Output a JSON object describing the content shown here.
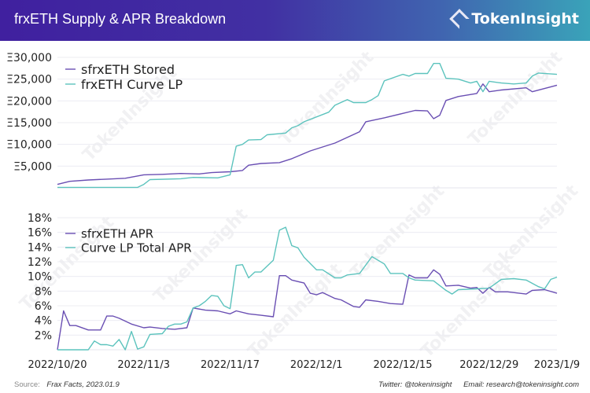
{
  "header": {
    "title": "frxETH Supply & APR Breakdown",
    "brand": "TokenInsight"
  },
  "watermark": "TokenInsight",
  "footer": {
    "source_label": "Source:",
    "source": "Frax Facts, 2023.01.9",
    "twitter": "Twitter: @tokeninsight",
    "email": "Email: research@tokeninsight.com"
  },
  "colors": {
    "purple": "#6a4fb3",
    "teal": "#5cc3bd",
    "grid": "#ececf2",
    "header_start": "#40209f",
    "header_end": "#3aa3b9"
  },
  "chart_data": [
    {
      "type": "line",
      "title": "",
      "legend": "top-left",
      "grid": true,
      "ylim": [
        0,
        30000
      ],
      "yticks": [
        "Ξ5,000",
        "Ξ10,000",
        "Ξ15,000",
        "Ξ20,000",
        "Ξ25,000",
        "Ξ30,000"
      ],
      "ytick_values": [
        5000,
        10000,
        15000,
        20000,
        25000,
        30000
      ],
      "xlim": [
        "2022-10-20",
        "2023-01-09"
      ],
      "series": [
        {
          "name": "sfrxETH Stored",
          "color": "#6a4fb3",
          "points": [
            [
              "2022-10-20",
              800
            ],
            [
              "2022-10-22",
              1500
            ],
            [
              "2022-10-25",
              1800
            ],
            [
              "2022-10-28",
              2000
            ],
            [
              "2022-10-31",
              2200
            ],
            [
              "2022-11-03",
              3000
            ],
            [
              "2022-11-06",
              3100
            ],
            [
              "2022-11-09",
              3300
            ],
            [
              "2022-11-12",
              3200
            ],
            [
              "2022-11-14",
              3500
            ],
            [
              "2022-11-17",
              3700
            ],
            [
              "2022-11-19",
              4000
            ],
            [
              "2022-11-20",
              5200
            ],
            [
              "2022-11-22",
              5600
            ],
            [
              "2022-11-25",
              5800
            ],
            [
              "2022-11-27",
              6700
            ],
            [
              "2022-11-30",
              8500
            ],
            [
              "2022-12-04",
              10300
            ],
            [
              "2022-12-08",
              12900
            ],
            [
              "2022-12-09",
              15200
            ],
            [
              "2022-12-12",
              16100
            ],
            [
              "2022-12-17",
              17800
            ],
            [
              "2022-12-19",
              17700
            ],
            [
              "2022-12-20",
              15900
            ],
            [
              "2022-12-21",
              16700
            ],
            [
              "2022-12-22",
              20100
            ],
            [
              "2022-12-24",
              21000
            ],
            [
              "2022-12-27",
              21700
            ],
            [
              "2022-12-28",
              23900
            ],
            [
              "2022-12-29",
              22100
            ],
            [
              "2022-12-31",
              22500
            ],
            [
              "2023-01-04",
              23000
            ],
            [
              "2023-01-05",
              22100
            ],
            [
              "2023-01-09",
              23600
            ]
          ]
        },
        {
          "name": "frxETH Curve LP",
          "color": "#5cc3bd",
          "points": [
            [
              "2022-10-20",
              100
            ],
            [
              "2022-11-02",
              100
            ],
            [
              "2022-11-03",
              800
            ],
            [
              "2022-11-04",
              1900
            ],
            [
              "2022-11-09",
              2100
            ],
            [
              "2022-11-11",
              2400
            ],
            [
              "2022-11-15",
              2300
            ],
            [
              "2022-11-17",
              3000
            ],
            [
              "2022-11-18",
              9600
            ],
            [
              "2022-11-19",
              10000
            ],
            [
              "2022-11-20",
              11000
            ],
            [
              "2022-11-22",
              11100
            ],
            [
              "2022-11-23",
              12200
            ],
            [
              "2022-11-26",
              12600
            ],
            [
              "2022-11-27",
              13800
            ],
            [
              "2022-11-28",
              14300
            ],
            [
              "2022-11-29",
              15200
            ],
            [
              "2022-12-03",
              17400
            ],
            [
              "2022-12-04",
              19000
            ],
            [
              "2022-12-06",
              20300
            ],
            [
              "2022-12-07",
              19600
            ],
            [
              "2022-12-09",
              19600
            ],
            [
              "2022-12-10",
              20300
            ],
            [
              "2022-12-11",
              21200
            ],
            [
              "2022-12-12",
              24600
            ],
            [
              "2022-12-15",
              26100
            ],
            [
              "2022-12-16",
              25700
            ],
            [
              "2022-12-17",
              26300
            ],
            [
              "2022-12-19",
              26300
            ],
            [
              "2022-12-20",
              28600
            ],
            [
              "2022-12-21",
              28600
            ],
            [
              "2022-12-22",
              25200
            ],
            [
              "2022-12-24",
              25000
            ],
            [
              "2022-12-26",
              24100
            ],
            [
              "2022-12-27",
              24500
            ],
            [
              "2022-12-28",
              22100
            ],
            [
              "2022-12-29",
              24500
            ],
            [
              "2022-12-31",
              24100
            ],
            [
              "2023-01-02",
              23900
            ],
            [
              "2023-01-04",
              24100
            ],
            [
              "2023-01-05",
              25700
            ],
            [
              "2023-01-06",
              26400
            ],
            [
              "2023-01-09",
              26100
            ]
          ]
        }
      ]
    },
    {
      "type": "line",
      "title": "",
      "legend": "top-left",
      "grid": true,
      "ylim": [
        0,
        18
      ],
      "yticks": [
        "2%",
        "4%",
        "6%",
        "8%",
        "10%",
        "12%",
        "14%",
        "16%",
        "18%"
      ],
      "ytick_values": [
        2,
        4,
        6,
        8,
        10,
        12,
        14,
        16,
        18
      ],
      "xlim": [
        "2022-10-20",
        "2023-01-09"
      ],
      "xticks": [
        "2022/10/20",
        "2022/11/3",
        "2022/11/17",
        "2022/12/1",
        "2022/12/15",
        "2022/12/29",
        "2023/1/9"
      ],
      "xtick_values": [
        "2022-10-20",
        "2022-11-03",
        "2022-11-17",
        "2022-12-01",
        "2022-12-15",
        "2022-12-29",
        "2023-01-09"
      ],
      "series": [
        {
          "name": "sfrxETH APR",
          "color": "#6a4fb3",
          "points": [
            [
              "2022-10-20",
              0
            ],
            [
              "2022-10-21",
              5.3
            ],
            [
              "2022-10-22",
              3.3
            ],
            [
              "2022-10-23",
              3.3
            ],
            [
              "2022-10-25",
              2.7
            ],
            [
              "2022-10-27",
              2.7
            ],
            [
              "2022-10-28",
              4.6
            ],
            [
              "2022-10-29",
              4.6
            ],
            [
              "2022-10-30",
              4.3
            ],
            [
              "2022-11-01",
              3.5
            ],
            [
              "2022-11-03",
              3.0
            ],
            [
              "2022-11-04",
              3.1
            ],
            [
              "2022-11-06",
              2.9
            ],
            [
              "2022-11-08",
              2.8
            ],
            [
              "2022-11-10",
              3.0
            ],
            [
              "2022-11-11",
              5.7
            ],
            [
              "2022-11-13",
              5.4
            ],
            [
              "2022-11-15",
              5.3
            ],
            [
              "2022-11-17",
              4.9
            ],
            [
              "2022-11-18",
              5.3
            ],
            [
              "2022-11-20",
              4.9
            ],
            [
              "2022-11-22",
              4.7
            ],
            [
              "2022-11-24",
              4.5
            ],
            [
              "2022-11-25",
              10.1
            ],
            [
              "2022-11-26",
              10.1
            ],
            [
              "2022-11-27",
              9.5
            ],
            [
              "2022-11-29",
              9.1
            ],
            [
              "2022-11-30",
              7.7
            ],
            [
              "2022-12-01",
              7.5
            ],
            [
              "2022-12-02",
              7.8
            ],
            [
              "2022-12-04",
              7.0
            ],
            [
              "2022-12-05",
              6.8
            ],
            [
              "2022-12-07",
              5.9
            ],
            [
              "2022-12-08",
              5.8
            ],
            [
              "2022-12-09",
              6.8
            ],
            [
              "2022-12-11",
              6.6
            ],
            [
              "2022-12-13",
              6.3
            ],
            [
              "2022-12-15",
              6.2
            ],
            [
              "2022-12-16",
              10.2
            ],
            [
              "2022-12-17",
              9.8
            ],
            [
              "2022-12-19",
              9.8
            ],
            [
              "2022-12-20",
              10.9
            ],
            [
              "2022-12-21",
              10.3
            ],
            [
              "2022-12-22",
              8.7
            ],
            [
              "2022-12-24",
              8.8
            ],
            [
              "2022-12-26",
              8.4
            ],
            [
              "2022-12-27",
              8.5
            ],
            [
              "2022-12-28",
              7.7
            ],
            [
              "2022-12-29",
              8.5
            ],
            [
              "2022-12-30",
              7.9
            ],
            [
              "2023-01-01",
              7.9
            ],
            [
              "2023-01-04",
              7.6
            ],
            [
              "2023-01-05",
              8.1
            ],
            [
              "2023-01-07",
              8.2
            ],
            [
              "2023-01-09",
              7.7
            ]
          ]
        },
        {
          "name": "Curve LP Total APR",
          "color": "#5cc3bd",
          "points": [
            [
              "2022-10-20",
              0
            ],
            [
              "2022-10-25",
              0
            ],
            [
              "2022-10-26",
              1.2
            ],
            [
              "2022-10-27",
              0.7
            ],
            [
              "2022-10-28",
              0.7
            ],
            [
              "2022-10-29",
              0.5
            ],
            [
              "2022-10-30",
              1.4
            ],
            [
              "2022-10-31",
              0
            ],
            [
              "2022-11-01",
              2.5
            ],
            [
              "2022-11-02",
              0.1
            ],
            [
              "2022-11-03",
              0.4
            ],
            [
              "2022-11-04",
              2.1
            ],
            [
              "2022-11-06",
              2.2
            ],
            [
              "2022-11-07",
              3.2
            ],
            [
              "2022-11-08",
              3.5
            ],
            [
              "2022-11-09",
              3.5
            ],
            [
              "2022-11-10",
              3.8
            ],
            [
              "2022-11-11",
              5.7
            ],
            [
              "2022-11-12",
              6.0
            ],
            [
              "2022-11-13",
              6.6
            ],
            [
              "2022-11-14",
              7.4
            ],
            [
              "2022-11-15",
              7.3
            ],
            [
              "2022-11-16",
              6.0
            ],
            [
              "2022-11-17",
              5.6
            ],
            [
              "2022-11-18",
              11.5
            ],
            [
              "2022-11-19",
              11.6
            ],
            [
              "2022-11-20",
              9.8
            ],
            [
              "2022-11-21",
              10.6
            ],
            [
              "2022-11-22",
              10.6
            ],
            [
              "2022-11-23",
              11.4
            ],
            [
              "2022-11-24",
              12.2
            ],
            [
              "2022-11-25",
              16.3
            ],
            [
              "2022-11-26",
              16.7
            ],
            [
              "2022-11-27",
              14.2
            ],
            [
              "2022-11-28",
              13.9
            ],
            [
              "2022-11-29",
              12.6
            ],
            [
              "2022-12-01",
              10.9
            ],
            [
              "2022-12-02",
              10.9
            ],
            [
              "2022-12-04",
              9.8
            ],
            [
              "2022-12-05",
              9.8
            ],
            [
              "2022-12-06",
              10.2
            ],
            [
              "2022-12-08",
              10.4
            ],
            [
              "2022-12-10",
              12.7
            ],
            [
              "2022-12-12",
              11.7
            ],
            [
              "2022-12-13",
              10.4
            ],
            [
              "2022-12-15",
              10.4
            ],
            [
              "2022-12-16",
              9.8
            ],
            [
              "2022-12-17",
              9.5
            ],
            [
              "2022-12-20",
              9.4
            ],
            [
              "2022-12-22",
              8.1
            ],
            [
              "2022-12-23",
              7.6
            ],
            [
              "2022-12-24",
              8.2
            ],
            [
              "2022-12-27",
              8.3
            ],
            [
              "2022-12-29",
              8.4
            ],
            [
              "2022-12-31",
              9.6
            ],
            [
              "2023-01-02",
              9.7
            ],
            [
              "2023-01-04",
              9.5
            ],
            [
              "2023-01-06",
              8.6
            ],
            [
              "2023-01-07",
              8.3
            ],
            [
              "2023-01-08",
              9.6
            ],
            [
              "2023-01-09",
              9.9
            ]
          ]
        }
      ]
    }
  ]
}
